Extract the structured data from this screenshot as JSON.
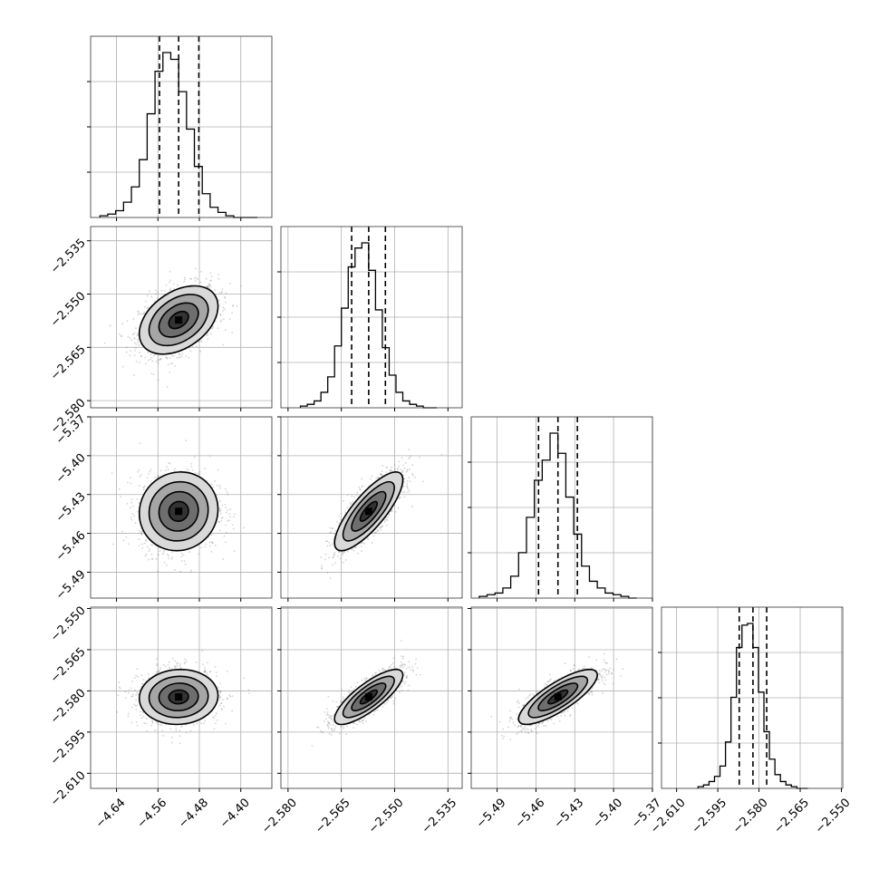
{
  "chart_data": {
    "type": "corner",
    "parameters": [
      {
        "range": [
          -4.69,
          -4.34
        ],
        "ticks": [
          -4.64,
          -4.56,
          -4.48,
          -4.4
        ],
        "tick_labels": [
          "−4.64",
          "−4.56",
          "−4.48",
          "−4.40"
        ],
        "median": -4.52,
        "q16": -4.557,
        "q84": -4.481,
        "sigma": 0.038,
        "hist_counts": [
          1,
          2,
          4,
          9,
          18,
          34,
          61,
          86,
          97,
          93,
          74,
          52,
          30,
          14,
          6,
          3,
          1,
          0,
          0,
          0
        ]
      },
      {
        "range": [
          -2.582,
          -2.531
        ],
        "ticks": [
          -2.58,
          -2.565,
          -2.55,
          -2.535
        ],
        "tick_labels": [
          "−2.580",
          "−2.565",
          "−2.550",
          "−2.535"
        ],
        "median": -2.5573,
        "q16": -2.5621,
        "q84": -2.5526,
        "sigma": 0.0048,
        "hist_counts": [
          1,
          2,
          4,
          9,
          18,
          36,
          58,
          82,
          93,
          96,
          80,
          57,
          35,
          19,
          9,
          4,
          2,
          1,
          0,
          0
        ]
      },
      {
        "range": [
          -5.51,
          -5.37
        ],
        "ticks": [
          -5.49,
          -5.46,
          -5.43,
          -5.4,
          -5.37
        ],
        "tick_labels": [
          "−5.49",
          "−5.46",
          "−5.43",
          "−5.40",
          "−5.37"
        ],
        "median": -5.443,
        "q16": -5.458,
        "q84": -5.428,
        "sigma": 0.0152,
        "hist_counts": [
          1,
          2,
          3,
          6,
          13,
          27,
          48,
          70,
          82,
          98,
          86,
          60,
          38,
          19,
          10,
          6,
          3,
          2,
          1,
          0
        ]
      },
      {
        "range": [
          -2.6155,
          -2.5495
        ],
        "ticks": [
          -2.61,
          -2.595,
          -2.58,
          -2.565,
          -2.55
        ],
        "tick_labels": [
          "−2.610",
          "−2.595",
          "−2.580",
          "−2.565",
          "−2.550"
        ],
        "median": -2.5822,
        "q16": -2.5872,
        "q84": -2.5772,
        "sigma": 0.005,
        "hist_counts": [
          1,
          2,
          4,
          7,
          13,
          27,
          53,
          82,
          95,
          96,
          82,
          56,
          33,
          17,
          8,
          4,
          2,
          1,
          0,
          0
        ]
      }
    ],
    "correlations": [
      [
        1,
        0.4,
        0.05,
        0.05
      ],
      [
        0.4,
        1,
        0.8,
        0.8
      ],
      [
        0.05,
        0.8,
        1,
        0.8
      ],
      [
        0.05,
        0.8,
        0.8,
        1
      ]
    ],
    "contour_levels_sigma": [
      0.5,
      1.0,
      1.5,
      2.0
    ],
    "grid": true,
    "colors": {
      "points": "#808080",
      "density": "#000000",
      "lines": "#000000"
    }
  }
}
